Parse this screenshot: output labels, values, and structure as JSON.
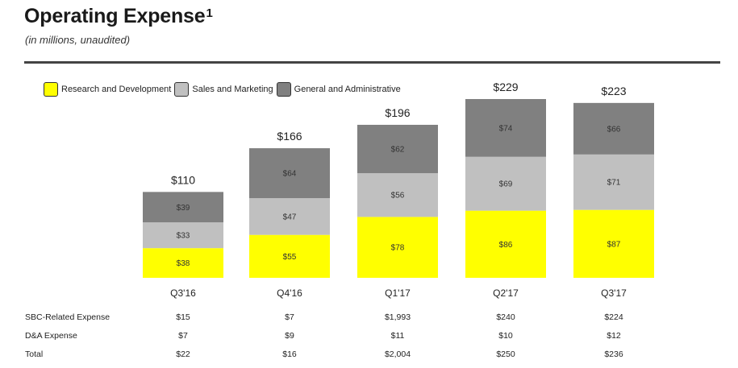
{
  "header": {
    "title": "Operating Expense",
    "title_superscript": "1",
    "subtitle": "(in millions, unaudited)"
  },
  "legend": [
    {
      "label": "Research and Development",
      "color": "#ffff00"
    },
    {
      "label": "Sales and Marketing",
      "color": "#c0c0c0"
    },
    {
      "label": "General and Administrative",
      "color": "#808080"
    }
  ],
  "chart_data": {
    "type": "bar",
    "stacked": true,
    "categories": [
      "Q3'16",
      "Q4'16",
      "Q1'17",
      "Q2'17",
      "Q3'17"
    ],
    "series": [
      {
        "name": "Research and Development",
        "color": "#ffff00",
        "values": [
          38,
          55,
          78,
          86,
          87
        ],
        "labels": [
          "$38",
          "$55",
          "$78",
          "$86",
          "$87"
        ]
      },
      {
        "name": "Sales and Marketing",
        "color": "#c0c0c0",
        "values": [
          33,
          47,
          56,
          69,
          71
        ],
        "labels": [
          "$33",
          "$47",
          "$56",
          "$69",
          "$71"
        ]
      },
      {
        "name": "General and Administrative",
        "color": "#808080",
        "values": [
          39,
          64,
          62,
          74,
          66
        ],
        "labels": [
          "$39",
          "$64",
          "$62",
          "$74",
          "$66"
        ]
      }
    ],
    "totals": [
      110,
      166,
      196,
      229,
      223
    ],
    "total_labels": [
      "$110",
      "$166",
      "$196",
      "$229",
      "$223"
    ],
    "ylim": [
      0,
      229
    ],
    "grid": false,
    "legend_position": "top-left"
  },
  "table": {
    "rows": [
      {
        "label": "SBC-Related Expense",
        "values": [
          "$15",
          "$7",
          "$1,993",
          "$240",
          "$224"
        ]
      },
      {
        "label": "D&A Expense",
        "values": [
          "$7",
          "$9",
          "$11",
          "$10",
          "$12"
        ]
      },
      {
        "label": "Total",
        "values": [
          "$22",
          "$16",
          "$2,004",
          "$250",
          "$236"
        ]
      }
    ]
  }
}
